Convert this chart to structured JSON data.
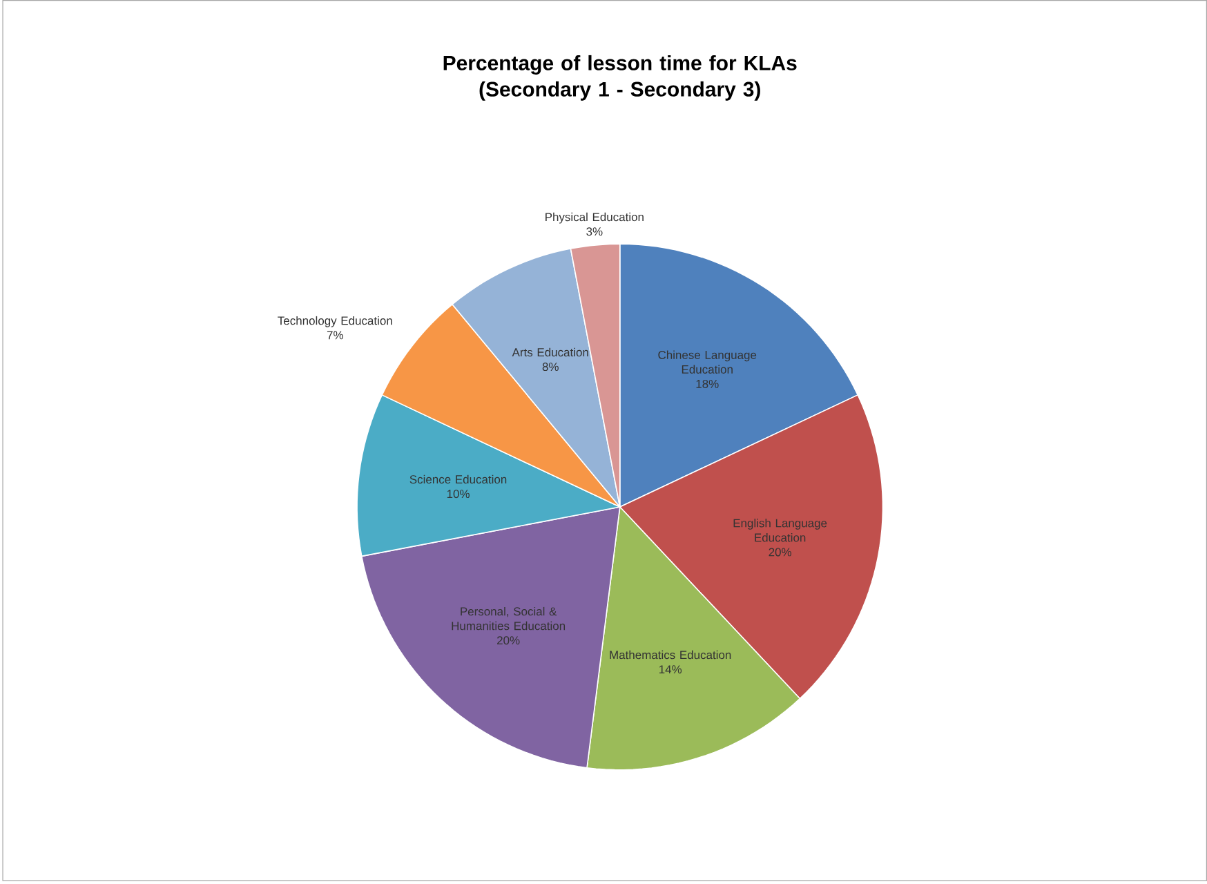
{
  "chart_data": {
    "type": "pie",
    "title": "Percentage of lesson time for KLAs\n(Secondary 1 - Secondary 3)",
    "categories": [
      "Chinese Language Education",
      "English Language Education",
      "Mathematics Education",
      "Personal, Social & Humanities Education",
      "Science Education",
      "Technology Education",
      "Arts Education",
      "Physical Education"
    ],
    "values": [
      18,
      20,
      14,
      20,
      10,
      7,
      8,
      3
    ],
    "value_labels": [
      "18%",
      "20%",
      "14%",
      "20%",
      "10%",
      "7%",
      "8%",
      "3%"
    ],
    "colors": [
      "#4f81bd",
      "#c0504d",
      "#9bbb59",
      "#8064a2",
      "#4bacc6",
      "#f79646",
      "#95b3d7",
      "#d99694"
    ]
  }
}
